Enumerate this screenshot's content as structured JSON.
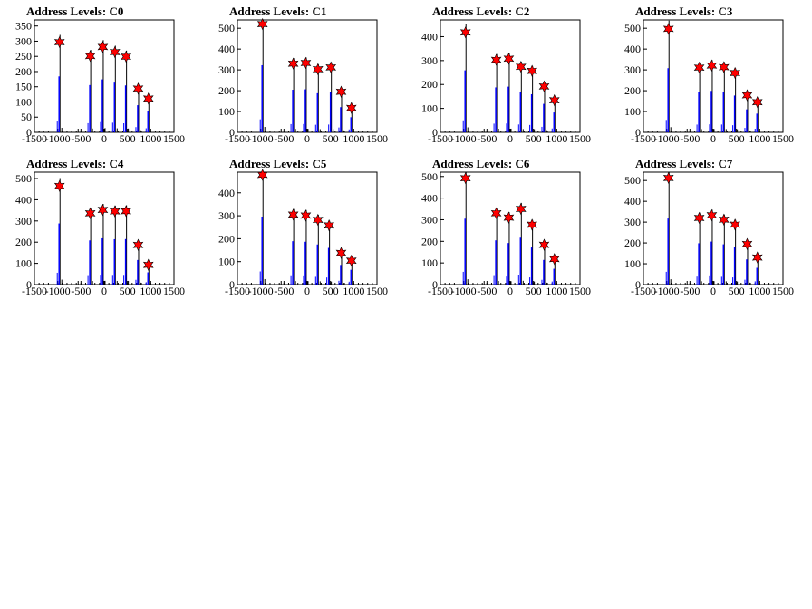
{
  "chart_data": [
    {
      "type": "histogram",
      "title": "Address Levels: C0",
      "xlim": [
        -1500,
        1500
      ],
      "ylim": [
        0,
        370
      ],
      "x_ticks": [
        "-1500",
        "-1000",
        "-500",
        "0",
        "500",
        "1000",
        "1500"
      ],
      "y_ticks": [
        "0",
        "50",
        "100",
        "150",
        "200",
        "250",
        "300",
        "350"
      ],
      "peaks": [
        {
          "x": -960,
          "y": 297
        },
        {
          "x": -300,
          "y": 251
        },
        {
          "x": -30,
          "y": 281
        },
        {
          "x": 230,
          "y": 264
        },
        {
          "x": 470,
          "y": 249
        },
        {
          "x": 730,
          "y": 144
        },
        {
          "x": 950,
          "y": 111
        }
      ]
    },
    {
      "type": "histogram",
      "title": "Address Levels: C1",
      "xlim": [
        -1500,
        1500
      ],
      "ylim": [
        0,
        540
      ],
      "x_ticks": [
        "-1500",
        "-1000",
        "-500",
        "0",
        "500",
        "1000",
        "1500"
      ],
      "y_ticks": [
        "0",
        "100",
        "200",
        "300",
        "400",
        "500"
      ],
      "peaks": [
        {
          "x": -960,
          "y": 520
        },
        {
          "x": -300,
          "y": 330
        },
        {
          "x": -30,
          "y": 333
        },
        {
          "x": 230,
          "y": 303
        },
        {
          "x": 510,
          "y": 312
        },
        {
          "x": 730,
          "y": 195
        },
        {
          "x": 950,
          "y": 117
        }
      ]
    },
    {
      "type": "histogram",
      "title": "Address Levels: C2",
      "xlim": [
        -1500,
        1500
      ],
      "ylim": [
        0,
        470
      ],
      "x_ticks": [
        "-1500",
        "-1000",
        "-500",
        "0",
        "500",
        "1000",
        "1500"
      ],
      "y_ticks": [
        "0",
        "100",
        "200",
        "300",
        "400"
      ],
      "peaks": [
        {
          "x": -960,
          "y": 418
        },
        {
          "x": -300,
          "y": 303
        },
        {
          "x": -30,
          "y": 308
        },
        {
          "x": 230,
          "y": 274
        },
        {
          "x": 470,
          "y": 257
        },
        {
          "x": 730,
          "y": 192
        },
        {
          "x": 950,
          "y": 134
        }
      ]
    },
    {
      "type": "histogram",
      "title": "Address Levels: C3",
      "xlim": [
        -1500,
        1500
      ],
      "ylim": [
        0,
        540
      ],
      "x_ticks": [
        "-1500",
        "-1000",
        "-500",
        "0",
        "500",
        "1000",
        "1500"
      ],
      "y_ticks": [
        "0",
        "100",
        "200",
        "300",
        "400",
        "500"
      ],
      "peaks": [
        {
          "x": -960,
          "y": 497
        },
        {
          "x": -300,
          "y": 311
        },
        {
          "x": -30,
          "y": 321
        },
        {
          "x": 230,
          "y": 313
        },
        {
          "x": 470,
          "y": 285
        },
        {
          "x": 730,
          "y": 178
        },
        {
          "x": 950,
          "y": 145
        }
      ]
    },
    {
      "type": "histogram",
      "title": "Address Levels: C4",
      "xlim": [
        -1500,
        1500
      ],
      "ylim": [
        0,
        530
      ],
      "x_ticks": [
        "-1500",
        "-1000",
        "-500",
        "0",
        "500",
        "1000",
        "1500"
      ],
      "y_ticks": [
        "0",
        "100",
        "200",
        "300",
        "400",
        "500"
      ],
      "peaks": [
        {
          "x": -960,
          "y": 465
        },
        {
          "x": -300,
          "y": 336
        },
        {
          "x": -30,
          "y": 352
        },
        {
          "x": 230,
          "y": 345
        },
        {
          "x": 470,
          "y": 346
        },
        {
          "x": 730,
          "y": 187
        },
        {
          "x": 950,
          "y": 93
        }
      ]
    },
    {
      "type": "histogram",
      "title": "Address Levels: C5",
      "xlim": [
        -1500,
        1500
      ],
      "ylim": [
        0,
        490
      ],
      "x_ticks": [
        "-1500",
        "-1000",
        "-500",
        "0",
        "500",
        "1000",
        "1500"
      ],
      "y_ticks": [
        "0",
        "100",
        "200",
        "300",
        "400"
      ],
      "peaks": [
        {
          "x": -960,
          "y": 478
        },
        {
          "x": -300,
          "y": 305
        },
        {
          "x": -30,
          "y": 301
        },
        {
          "x": 230,
          "y": 282
        },
        {
          "x": 470,
          "y": 258
        },
        {
          "x": 730,
          "y": 138
        },
        {
          "x": 950,
          "y": 104
        }
      ]
    },
    {
      "type": "histogram",
      "title": "Address Levels: C6",
      "xlim": [
        -1500,
        1500
      ],
      "ylim": [
        0,
        520
      ],
      "x_ticks": [
        "-1500",
        "-1000",
        "-500",
        "0",
        "500",
        "1000",
        "1500"
      ],
      "y_ticks": [
        "0",
        "100",
        "200",
        "300",
        "400",
        "500"
      ],
      "peaks": [
        {
          "x": -960,
          "y": 492
        },
        {
          "x": -300,
          "y": 330
        },
        {
          "x": -30,
          "y": 310
        },
        {
          "x": 230,
          "y": 350
        },
        {
          "x": 470,
          "y": 277
        },
        {
          "x": 730,
          "y": 184
        },
        {
          "x": 950,
          "y": 118
        }
      ]
    },
    {
      "type": "histogram",
      "title": "Address Levels: C7",
      "xlim": [
        -1500,
        1500
      ],
      "ylim": [
        0,
        540
      ],
      "x_ticks": [
        "-1500",
        "-1000",
        "-500",
        "0",
        "500",
        "1000",
        "1500"
      ],
      "y_ticks": [
        "0",
        "100",
        "200",
        "300",
        "400",
        "500"
      ],
      "peaks": [
        {
          "x": -960,
          "y": 512
        },
        {
          "x": -300,
          "y": 320
        },
        {
          "x": -30,
          "y": 333
        },
        {
          "x": 230,
          "y": 312
        },
        {
          "x": 470,
          "y": 288
        },
        {
          "x": 730,
          "y": 195
        },
        {
          "x": 950,
          "y": 130
        }
      ]
    }
  ],
  "colors": {
    "histogram_line": "#0000ff",
    "secondary_line": "#000000",
    "marker_fill": "#ff0000",
    "marker_stroke": "#000000"
  }
}
